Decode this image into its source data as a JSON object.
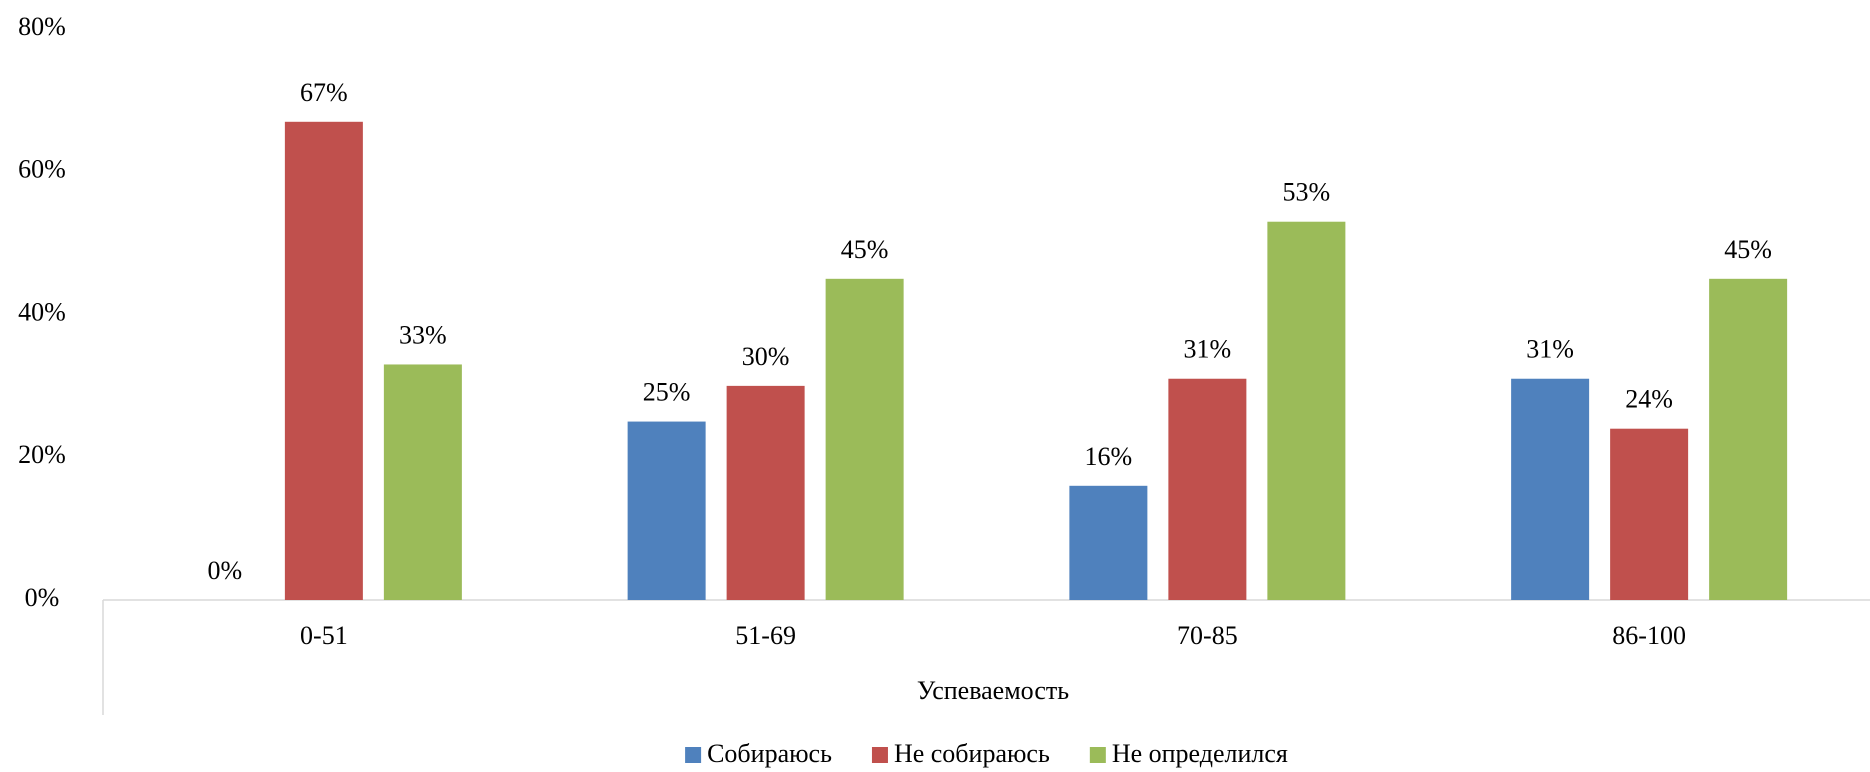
{
  "chart_data": {
    "type": "bar",
    "x_label": "Успеваемость",
    "categories": [
      "0-51",
      "51-69",
      "70-85",
      "86-100"
    ],
    "series": [
      {
        "name": "Собираюсь",
        "color": "#4f81bd",
        "values": [
          0,
          25,
          16,
          31
        ],
        "value_labels": [
          "0%",
          "25%",
          "16%",
          "31%"
        ]
      },
      {
        "name": "Не собираюсь",
        "color": "#c0504d",
        "values": [
          67,
          30,
          31,
          24
        ],
        "value_labels": [
          "67%",
          "30%",
          "31%",
          "24%"
        ]
      },
      {
        "name": "Не определился",
        "color": "#9bbb59",
        "values": [
          33,
          45,
          53,
          45
        ],
        "value_labels": [
          "33%",
          "45%",
          "53%",
          "45%"
        ]
      }
    ],
    "ylim": [
      0,
      80
    ],
    "yticks": [
      {
        "value": 0,
        "label": "0%"
      },
      {
        "value": 20,
        "label": "20%"
      },
      {
        "value": 40,
        "label": "40%"
      },
      {
        "value": 60,
        "label": "60%"
      },
      {
        "value": 80,
        "label": "80%"
      }
    ],
    "grid": false,
    "legend": "bottom"
  }
}
